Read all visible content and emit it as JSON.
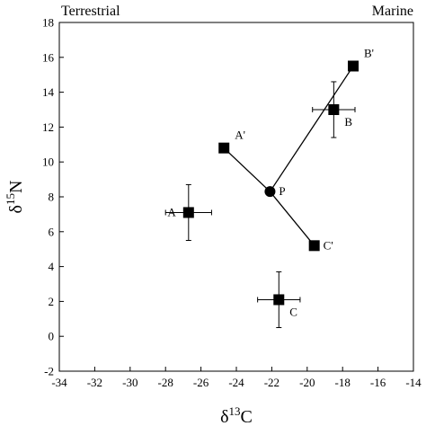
{
  "chart_data": {
    "type": "scatter",
    "title": "",
    "xlabel": {
      "base": "δ",
      "sup": "13",
      "main": "C"
    },
    "ylabel": {
      "base": "δ",
      "sup": "15",
      "main": "N"
    },
    "xlim": [
      -34,
      -14
    ],
    "ylim": [
      -2,
      18
    ],
    "xticks": [
      -34,
      -32,
      -30,
      -28,
      -26,
      -24,
      -22,
      -20,
      -18,
      -16,
      -14
    ],
    "yticks": [
      -2,
      0,
      2,
      4,
      6,
      8,
      10,
      12,
      14,
      16,
      18
    ],
    "annotations": {
      "left": "Terrestrial",
      "right": "Marine"
    },
    "grid": false,
    "points": [
      {
        "label": "A",
        "x": -26.7,
        "y": 7.1,
        "marker": "square",
        "xerr": 1.3,
        "yerr": 1.6,
        "label_pos": "left"
      },
      {
        "label": "B",
        "x": -18.5,
        "y": 13.0,
        "marker": "square",
        "xerr": 1.2,
        "yerr": 1.6,
        "label_pos": "below-right"
      },
      {
        "label": "C",
        "x": -21.6,
        "y": 2.1,
        "marker": "square",
        "xerr": 1.2,
        "yerr": 1.6,
        "label_pos": "below-right"
      },
      {
        "label": "A'",
        "x": -24.7,
        "y": 10.8,
        "marker": "square",
        "label_pos": "above-right"
      },
      {
        "label": "B'",
        "x": -17.4,
        "y": 15.5,
        "marker": "square",
        "label_pos": "above-right"
      },
      {
        "label": "C'",
        "x": -19.6,
        "y": 5.2,
        "marker": "square",
        "label_pos": "right"
      },
      {
        "label": "P",
        "x": -22.1,
        "y": 8.3,
        "marker": "circle",
        "label_pos": "right"
      }
    ],
    "lines": [
      {
        "from": "A'",
        "to": "P"
      },
      {
        "from": "P",
        "to": "C'"
      },
      {
        "from": "P",
        "to": "B'"
      }
    ]
  }
}
